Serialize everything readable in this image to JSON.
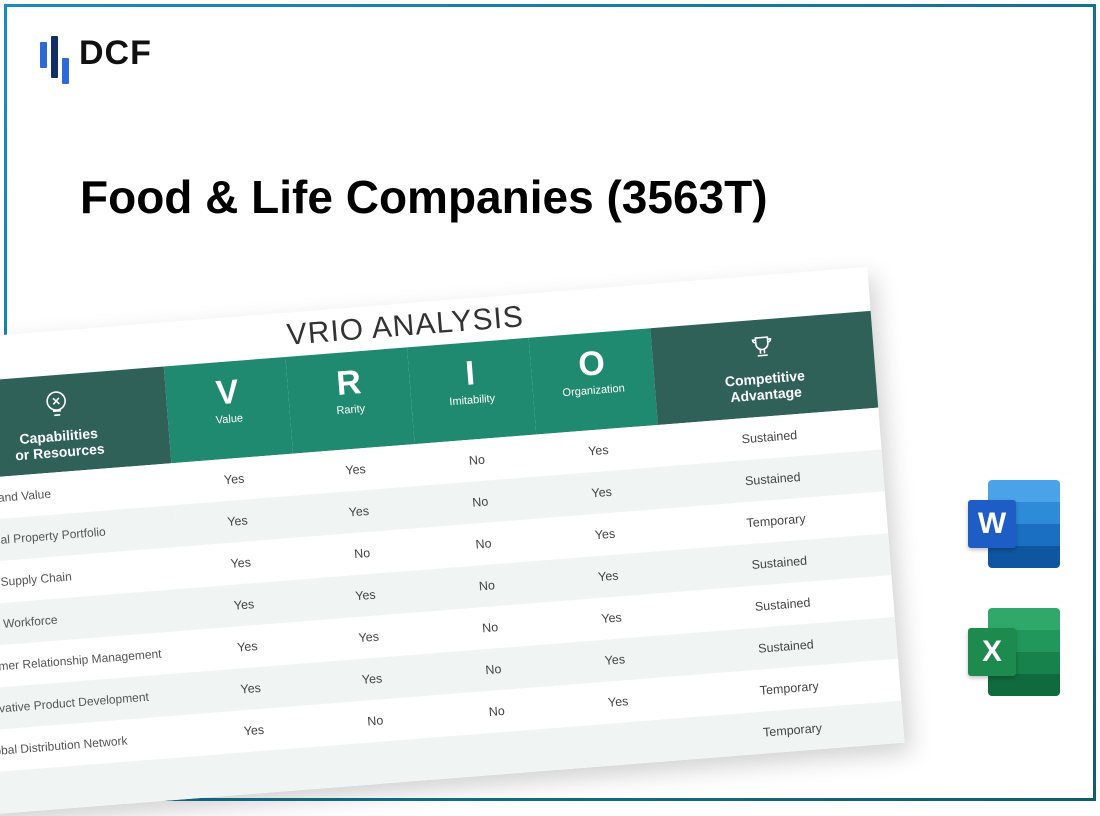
{
  "colors": {
    "border_gradient_from": "#1a8bbf",
    "border_gradient_to": "#0f5f6b",
    "logo_bar": "#2e68d9",
    "logo_bar_dark": "#0f2f66",
    "header_dark": "#2f6158",
    "header_accent": "#1f8a70",
    "row_even": "#f0f5f4",
    "text_dark": "#111",
    "word_badge": "#1e5cc6",
    "word_b1": "#4aa3e8",
    "word_b2": "#2e8bd8",
    "word_b3": "#1a6fc2",
    "word_b4": "#0f56a0",
    "excel_badge": "#1d8a4e",
    "excel_b1": "#2fa86a",
    "excel_b2": "#22975b",
    "excel_b3": "#18824c",
    "excel_b4": "#0f6b3d"
  },
  "logo": {
    "text": "DCF"
  },
  "title": "Food & Life Companies (3563T)",
  "table": {
    "title": "VRIO ANALYSIS",
    "headers": {
      "capabilities": "Capabilities\nor Resources",
      "v_letter": "V",
      "v_label": "Value",
      "r_letter": "R",
      "r_label": "Rarity",
      "i_letter": "I",
      "i_label": "Imitability",
      "o_letter": "O",
      "o_label": "Organization",
      "advantage": "Competitive\nAdvantage"
    },
    "rows": [
      {
        "cap": "ong Brand Value",
        "v": "Yes",
        "r": "Yes",
        "i": "No",
        "o": "Yes",
        "adv": "Sustained"
      },
      {
        "cap": "ellectual Property Portfolio",
        "v": "Yes",
        "r": "Yes",
        "i": "No",
        "o": "Yes",
        "adv": "Sustained"
      },
      {
        "cap": "icient Supply Chain",
        "v": "Yes",
        "r": "No",
        "i": "No",
        "o": "Yes",
        "adv": "Temporary"
      },
      {
        "cap": "killed Workforce",
        "v": "Yes",
        "r": "Yes",
        "i": "No",
        "o": "Yes",
        "adv": "Sustained"
      },
      {
        "cap": "ustomer Relationship Management",
        "v": "Yes",
        "r": "Yes",
        "i": "No",
        "o": "Yes",
        "adv": "Sustained"
      },
      {
        "cap": "nnovative Product Development",
        "v": "Yes",
        "r": "Yes",
        "i": "No",
        "o": "Yes",
        "adv": "Sustained"
      },
      {
        "cap": "Global Distribution Network",
        "v": "Yes",
        "r": "No",
        "i": "No",
        "o": "Yes",
        "adv": "Temporary"
      },
      {
        "cap": "",
        "v": "",
        "r": "",
        "i": "",
        "o": "",
        "adv": "Temporary"
      }
    ]
  },
  "file_icons": {
    "word_letter": "W",
    "excel_letter": "X"
  }
}
